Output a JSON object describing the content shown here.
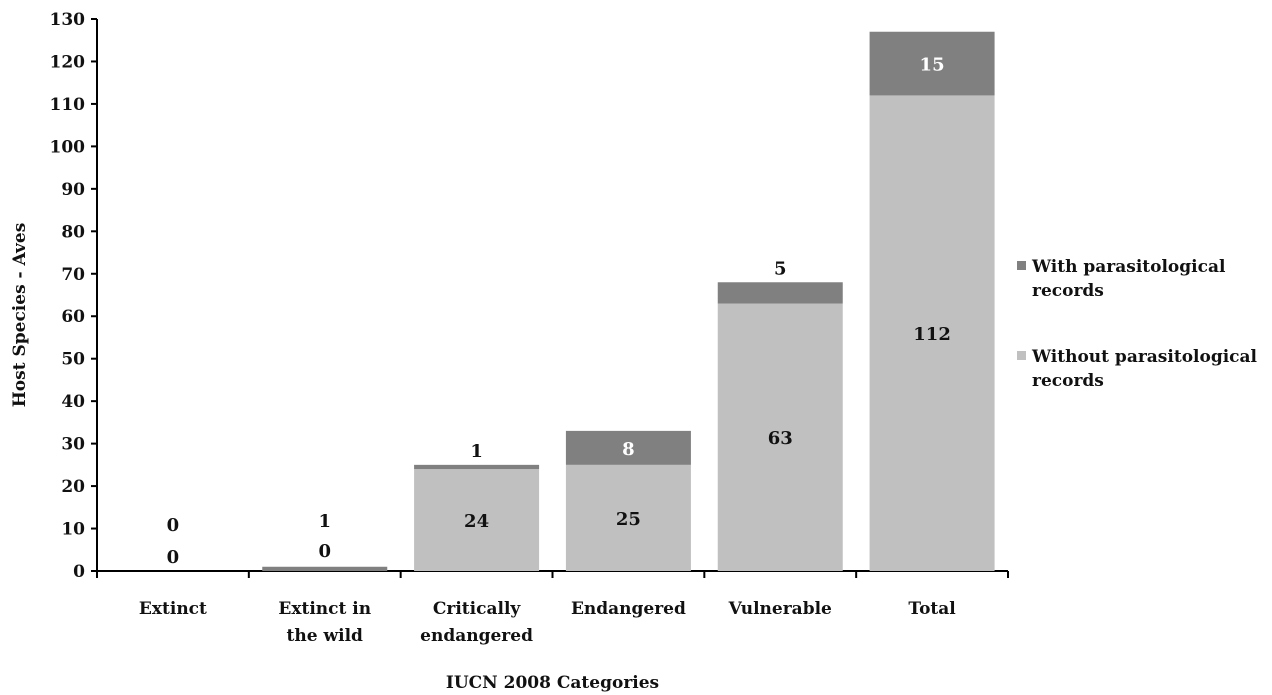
{
  "chart_data": {
    "type": "bar",
    "stacked": true,
    "categories": [
      "Extinct",
      "Extinct in the wild",
      "Critically endangered",
      "Endangered",
      "Vulnerable",
      "Total"
    ],
    "category_lines": [
      [
        "Extinct"
      ],
      [
        "Extinct in",
        "the wild"
      ],
      [
        "Critically",
        "endangered"
      ],
      [
        "Endangered"
      ],
      [
        "Vulnerable"
      ],
      [
        "Total"
      ]
    ],
    "series": [
      {
        "name": "Without parasitological records",
        "legend_lines": [
          "Without parasitological",
          "records"
        ],
        "values": [
          0,
          0,
          24,
          25,
          63,
          112
        ],
        "color": "#c0c0c0",
        "label_color": "#111111"
      },
      {
        "name": "With parasitological records",
        "legend_lines": [
          "With parasitological",
          "records"
        ],
        "values": [
          0,
          1,
          1,
          8,
          5,
          15
        ],
        "color": "#808080",
        "label_color": "#ffffff"
      }
    ],
    "xlabel": "IUCN 2008 Categories",
    "ylabel": "Host Species - Aves",
    "ylim": [
      0,
      130
    ],
    "yticks": [
      0,
      10,
      20,
      30,
      40,
      50,
      60,
      70,
      80,
      90,
      100,
      110,
      120,
      130
    ],
    "grid": false,
    "legend_position": "right"
  }
}
